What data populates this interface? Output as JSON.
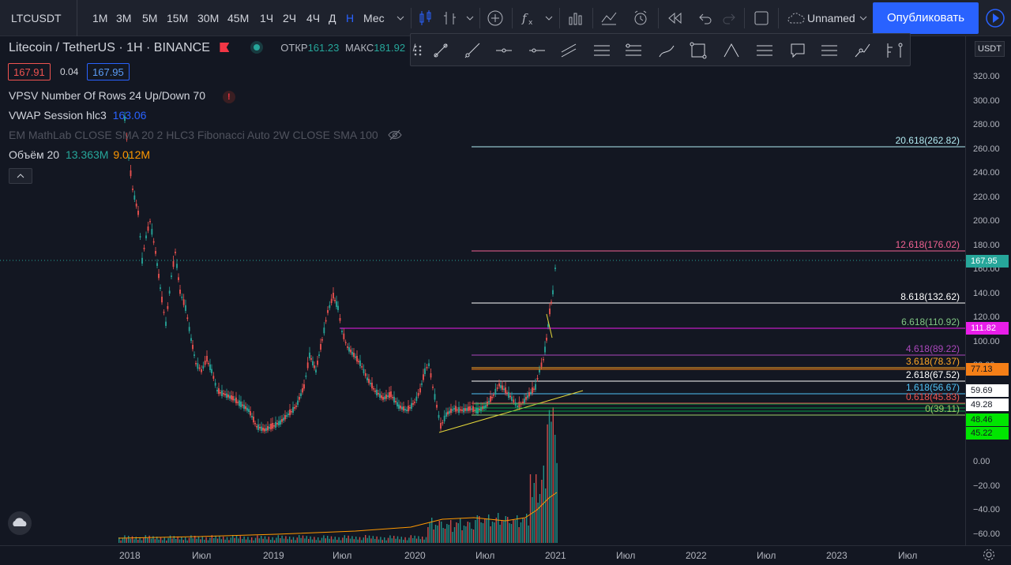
{
  "toolbar": {
    "symbol": "LTCUSDT",
    "intervals": [
      "1M",
      "3M",
      "5M",
      "15M",
      "30M",
      "45M",
      "1Ч",
      "2Ч",
      "4Ч",
      "Д",
      "Н",
      "Мес"
    ],
    "active_interval_index": 10,
    "layout_name": "Unnamed",
    "publish_label": "Опубликовать"
  },
  "legend": {
    "title": "Litecoin / TetherUS · 1H · BINANCE",
    "open_label": "ОТКР",
    "open_value": "161.23",
    "high_label": "МАКС",
    "high_value": "181.92",
    "high_cut": "/",
    "bid": "167.91",
    "spread": "0.04",
    "ask": "167.95",
    "vpsv": "VPSV Number Of Rows 24 Up/Down 70",
    "vwap_label": "VWAP Session hlc3",
    "vwap_value": "163.06",
    "em": "EM MathLab CLOSE SMA 20 2 HLC3 Fibonacci Auto 2W CLOSE SMA 100",
    "volume_label": "Объём 20",
    "volume_1": "13.363M",
    "volume_2": "9.012M"
  },
  "price_axis": {
    "currency": "USDT",
    "ticks": [
      "320.00",
      "300.00",
      "280.00",
      "260.00",
      "240.00",
      "220.00",
      "200.00",
      "180.00",
      "160.00",
      "140.00",
      "120.00",
      "100.00",
      "80.00",
      "60.00",
      "0.00",
      "−20.00",
      "−40.00",
      "−60.00"
    ],
    "tags": [
      {
        "text": "167.95",
        "bg": "#26a69a",
        "color": "#ffffff"
      },
      {
        "text": "111.82",
        "bg": "#e91ee9",
        "color": "#ffffff"
      },
      {
        "text": "77.13",
        "bg": "#f57f17",
        "color": "#131722"
      },
      {
        "text": "59.69",
        "bg": "#ffffff",
        "color": "#131722"
      },
      {
        "text": "49.28",
        "bg": "#ffffff",
        "color": "#131722"
      },
      {
        "text": "48.46",
        "bg": "#00e600",
        "color": "#131722"
      },
      {
        "text": "45.22",
        "bg": "#00e600",
        "color": "#131722"
      }
    ]
  },
  "fib_levels": [
    {
      "label": "20.618(262.82)",
      "color": "#b2ebf2"
    },
    {
      "label": "12.618(176.02)",
      "color": "#f06292"
    },
    {
      "label": "8.618(132.62)",
      "color": "#ffffff"
    },
    {
      "label": "6.618(110.92)",
      "color": "#81c784"
    },
    {
      "label": "4.618(89.22)",
      "color": "#ab47bc"
    },
    {
      "label": "3.618(78.37)",
      "color": "#ffa726"
    },
    {
      "label": "2.618(67.52)",
      "color": "#ffffff"
    },
    {
      "label": "1.618(56.67)",
      "color": "#4fc3f7"
    },
    {
      "label": "0.618(45.83)",
      "color": "#ef5350"
    },
    {
      "label": "0(39.11)",
      "color": "#9ccc65"
    }
  ],
  "time_axis": [
    "2018",
    "Июл",
    "2019",
    "Июл",
    "2020",
    "Июл",
    "2021",
    "Июл",
    "2022",
    "Июл",
    "2023",
    "Июл"
  ],
  "colors": {
    "up": "#26a69a",
    "down": "#ef5350",
    "background": "#131722",
    "accent": "#2962ff"
  }
}
